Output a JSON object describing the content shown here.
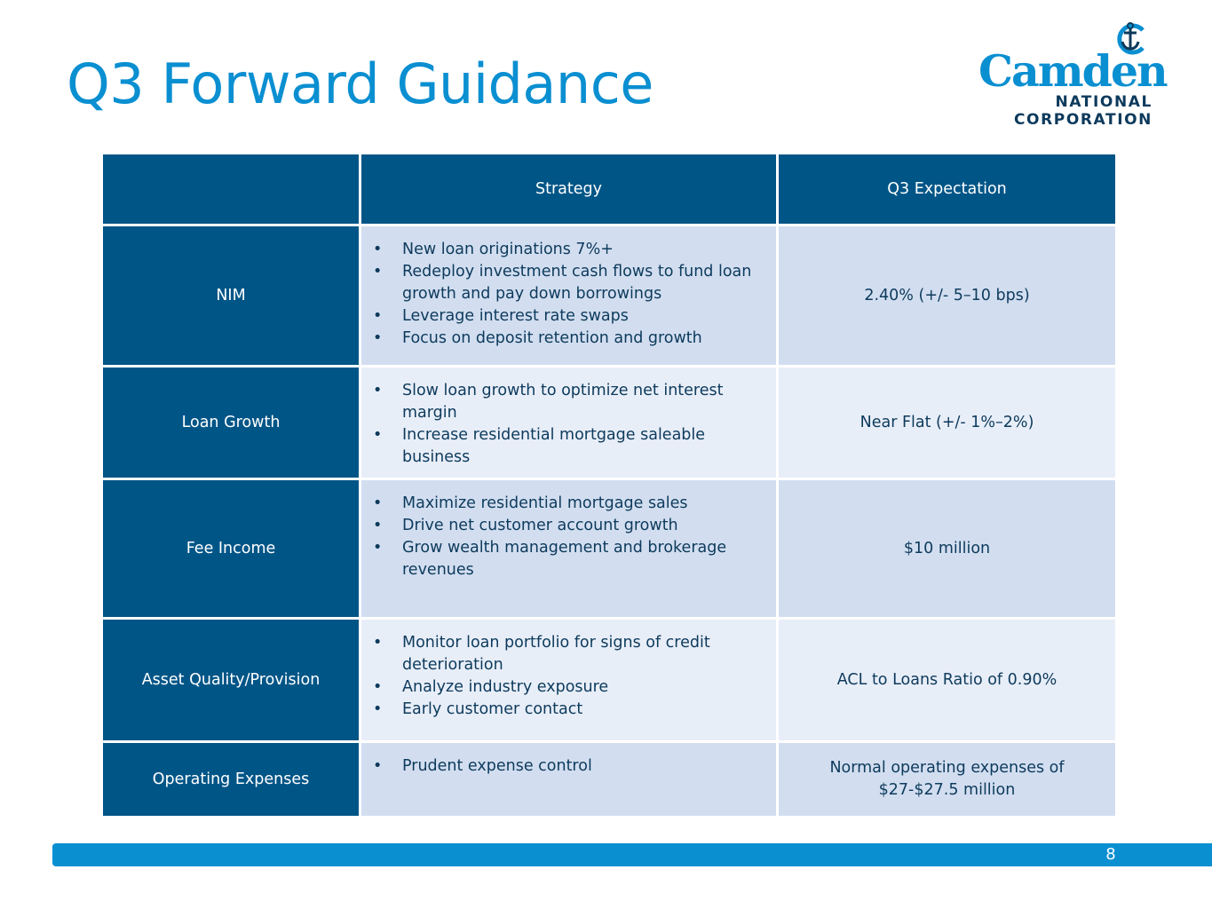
{
  "slide": {
    "title": "Q3 Forward Guidance",
    "page_number": "8"
  },
  "logo": {
    "name": "Camden",
    "line1": "NATIONAL",
    "line2": "CORPORATION",
    "icon": "anchor-icon"
  },
  "table": {
    "headers": [
      "",
      "Strategy",
      "Q3 Expectation"
    ],
    "rows": [
      {
        "label": "NIM",
        "strategy": [
          "New loan originations 7%+",
          "Redeploy investment cash flows to fund loan growth and pay down borrowings",
          "Leverage interest rate swaps",
          "Focus on deposit retention and growth"
        ],
        "expectation": "2.40% (+/- 5–10 bps)"
      },
      {
        "label": "Loan Growth",
        "strategy": [
          "Slow loan growth to optimize net interest margin",
          "Increase residential mortgage saleable business"
        ],
        "expectation": "Near Flat (+/- 1%–2%)"
      },
      {
        "label": "Fee Income",
        "strategy": [
          "Maximize residential mortgage sales",
          "Drive net customer account growth",
          "Grow wealth management and brokerage revenues"
        ],
        "expectation": "$10 million"
      },
      {
        "label": "Asset Quality/Provision",
        "strategy": [
          "Monitor loan portfolio for signs of credit deterioration",
          "Analyze industry exposure",
          "Early customer contact"
        ],
        "expectation": "ACL to Loans Ratio of 0.90%"
      },
      {
        "label": "Operating Expenses",
        "strategy": [
          "Prudent expense control"
        ],
        "expectation": "Normal operating expenses of $27-$27.5 million"
      }
    ]
  },
  "colors": {
    "title_blue": "#0a8fd1",
    "header_navy": "#005587",
    "cell_light_a": "#d2def0",
    "cell_light_b": "#e8eef8",
    "text_navy": "#0d3a5c"
  }
}
